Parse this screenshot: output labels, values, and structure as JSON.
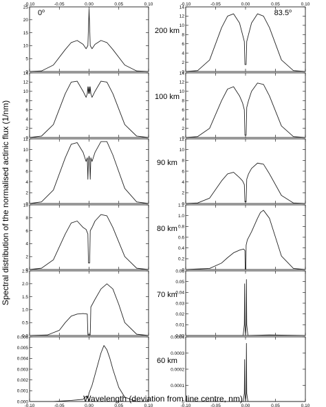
{
  "figure": {
    "ylabel": "Spectral distribution of the normalised actinic flux (1/nm)",
    "xlabel": "Wavelength (deviation from line centre, nm)",
    "x_ticks": [
      "-0.10",
      "-0.05",
      "0.00",
      "0.05",
      "0.10"
    ],
    "columns": [
      {
        "angle_base": "0",
        "angle_sup": "o"
      },
      {
        "angle_base": "83.5",
        "angle_sup": "o"
      }
    ],
    "rows": [
      {
        "altitude": "200 km"
      },
      {
        "altitude": "100 km"
      },
      {
        "altitude": "90 km"
      },
      {
        "altitude": "80 km"
      },
      {
        "altitude": "70 km"
      },
      {
        "altitude": "60 km"
      }
    ]
  },
  "chart_data": [
    {
      "type": "line",
      "column_angle": "0°",
      "altitude": "200 km",
      "xlim": [
        -0.1,
        0.1
      ],
      "ylim": [
        0,
        25
      ],
      "y_ticks": [
        "0",
        "5",
        "10",
        "15",
        "20",
        "25"
      ],
      "x": [
        -0.1,
        -0.08,
        -0.06,
        -0.04,
        -0.03,
        -0.02,
        -0.01,
        -0.005,
        -0.002,
        0.0,
        0.002,
        0.005,
        0.01,
        0.02,
        0.03,
        0.04,
        0.06,
        0.08,
        0.1
      ],
      "y": [
        0,
        0.2,
        2.5,
        8.5,
        11.2,
        12.0,
        10.5,
        8.8,
        10,
        24,
        10,
        8.8,
        10.5,
        12.0,
        11.2,
        8.5,
        2.5,
        0.2,
        0
      ]
    },
    {
      "type": "line",
      "column_angle": "83.5°",
      "altitude": "200 km",
      "xlim": [
        -0.1,
        0.1
      ],
      "ylim": [
        0,
        14
      ],
      "y_ticks": [
        "0",
        "2",
        "4",
        "6",
        "8",
        "10",
        "12",
        "14"
      ],
      "x": [
        -0.1,
        -0.08,
        -0.06,
        -0.04,
        -0.03,
        -0.02,
        -0.01,
        -0.005,
        -0.002,
        -0.001,
        0.001,
        0.002,
        0.005,
        0.01,
        0.02,
        0.03,
        0.04,
        0.06,
        0.08,
        0.1
      ],
      "y": [
        0,
        0.2,
        2.5,
        9.5,
        12.0,
        12.5,
        10.5,
        8.0,
        6.5,
        1.5,
        1.5,
        6.5,
        8.0,
        10.5,
        12.5,
        12.0,
        9.5,
        2.5,
        0.2,
        0
      ]
    },
    {
      "type": "line",
      "column_angle": "0°",
      "altitude": "100 km",
      "xlim": [
        -0.1,
        0.1
      ],
      "ylim": [
        0,
        14
      ],
      "y_ticks": [
        "0",
        "2",
        "4",
        "6",
        "8",
        "10",
        "12",
        "14"
      ],
      "x": [
        -0.1,
        -0.08,
        -0.06,
        -0.04,
        -0.03,
        -0.02,
        -0.01,
        -0.005,
        -0.003,
        -0.002,
        -0.001,
        0.0,
        0.001,
        0.002,
        0.003,
        0.005,
        0.01,
        0.02,
        0.03,
        0.04,
        0.06,
        0.08,
        0.1
      ],
      "y": [
        0,
        0.3,
        2.8,
        9.5,
        12.0,
        12.2,
        10.0,
        8.7,
        9.5,
        11.0,
        9.5,
        11.0,
        9.5,
        11.0,
        9.5,
        8.7,
        10.0,
        12.2,
        12.0,
        9.5,
        2.8,
        0.3,
        0
      ]
    },
    {
      "type": "line",
      "column_angle": "83.5°",
      "altitude": "100 km",
      "xlim": [
        -0.1,
        0.1
      ],
      "ylim": [
        0,
        14
      ],
      "y_ticks": [
        "0",
        "2",
        "4",
        "6",
        "8",
        "10",
        "12",
        "14"
      ],
      "x": [
        -0.1,
        -0.08,
        -0.06,
        -0.04,
        -0.03,
        -0.02,
        -0.01,
        -0.005,
        -0.002,
        -0.001,
        0.001,
        0.002,
        0.005,
        0.01,
        0.02,
        0.03,
        0.04,
        0.06,
        0.08,
        0.1
      ],
      "y": [
        0,
        0.2,
        2.0,
        8.0,
        10.5,
        11.0,
        9.0,
        7.5,
        6.0,
        0.5,
        0.5,
        6.5,
        8.0,
        10.0,
        11.8,
        11.5,
        9.0,
        2.5,
        0.2,
        0
      ]
    },
    {
      "type": "line",
      "column_angle": "0°",
      "altitude": "90 km",
      "xlim": [
        -0.1,
        0.1
      ],
      "ylim": [
        0,
        12
      ],
      "y_ticks": [
        "0",
        "2",
        "4",
        "6",
        "8",
        "10",
        "12"
      ],
      "x": [
        -0.1,
        -0.08,
        -0.06,
        -0.04,
        -0.03,
        -0.02,
        -0.01,
        -0.005,
        -0.003,
        -0.002,
        -0.001,
        0.0,
        0.001,
        0.002,
        0.003,
        0.005,
        0.01,
        0.02,
        0.03,
        0.04,
        0.06,
        0.08,
        0.1
      ],
      "y": [
        0,
        0.3,
        2.5,
        8.5,
        11.0,
        11.3,
        9.5,
        7.8,
        8.5,
        4.5,
        8.0,
        8.8,
        8.0,
        4.5,
        8.5,
        7.8,
        9.5,
        11.5,
        11.5,
        9.0,
        2.8,
        0.3,
        0
      ]
    },
    {
      "type": "line",
      "column_angle": "83.5°",
      "altitude": "90 km",
      "xlim": [
        -0.1,
        0.1
      ],
      "ylim": [
        0,
        12
      ],
      "y_ticks": [
        "0",
        "2",
        "4",
        "6",
        "8",
        "10",
        "12"
      ],
      "x": [
        -0.1,
        -0.08,
        -0.06,
        -0.04,
        -0.03,
        -0.02,
        -0.01,
        -0.005,
        -0.002,
        -0.001,
        0.001,
        0.002,
        0.005,
        0.01,
        0.02,
        0.03,
        0.04,
        0.06,
        0.08,
        0.1
      ],
      "y": [
        0,
        0.1,
        1.0,
        4.2,
        5.5,
        5.8,
        4.8,
        4.2,
        3.5,
        0.3,
        0.3,
        4.5,
        5.5,
        6.5,
        7.5,
        7.3,
        5.5,
        1.5,
        0.1,
        0
      ]
    },
    {
      "type": "line",
      "column_angle": "0°",
      "altitude": "80 km",
      "xlim": [
        -0.1,
        0.1
      ],
      "ylim": [
        0,
        10
      ],
      "y_ticks": [
        "0",
        "2",
        "4",
        "6",
        "8",
        "10"
      ],
      "x": [
        -0.1,
        -0.08,
        -0.06,
        -0.04,
        -0.03,
        -0.02,
        -0.01,
        -0.005,
        -0.002,
        -0.001,
        0.001,
        0.002,
        0.005,
        0.01,
        0.02,
        0.03,
        0.04,
        0.06,
        0.08,
        0.1
      ],
      "y": [
        0,
        0.2,
        1.5,
        5.5,
        7.2,
        7.5,
        6.5,
        6.2,
        5.5,
        1.0,
        1.0,
        6.0,
        6.5,
        7.5,
        8.5,
        8.3,
        6.5,
        2.0,
        0.2,
        0
      ]
    },
    {
      "type": "line",
      "column_angle": "83.5°",
      "altitude": "80 km",
      "xlim": [
        -0.1,
        0.1
      ],
      "ylim": [
        0,
        1.2
      ],
      "y_ticks": [
        "0",
        "0.2",
        "0.4",
        "0.6",
        "0.8",
        "1.0",
        "1.2"
      ],
      "x": [
        -0.1,
        -0.06,
        -0.04,
        -0.03,
        -0.02,
        -0.01,
        -0.003,
        -0.001,
        -0.0005,
        0.0005,
        0.001,
        0.003,
        0.01,
        0.02,
        0.025,
        0.03,
        0.04,
        0.05,
        0.06,
        0.08,
        0.1
      ],
      "y": [
        0,
        0.02,
        0.12,
        0.22,
        0.31,
        0.36,
        0.38,
        0.35,
        0.0,
        0.0,
        0.45,
        0.55,
        0.7,
        0.95,
        1.06,
        1.1,
        0.95,
        0.6,
        0.25,
        0.02,
        0
      ]
    },
    {
      "type": "line",
      "column_angle": "0°",
      "altitude": "70 km",
      "xlim": [
        -0.1,
        0.1
      ],
      "ylim": [
        0,
        2.5
      ],
      "y_ticks": [
        "0.0",
        "0.5",
        "1.0",
        "1.5",
        "2.0",
        "2.5"
      ],
      "x": [
        -0.1,
        -0.07,
        -0.05,
        -0.04,
        -0.03,
        -0.02,
        -0.01,
        -0.003,
        -0.002,
        0.002,
        0.003,
        0.01,
        0.02,
        0.03,
        0.04,
        0.05,
        0.06,
        0.08,
        0.1
      ],
      "y": [
        0,
        0.02,
        0.2,
        0.5,
        0.75,
        0.83,
        0.85,
        0.83,
        0.03,
        0.03,
        1.1,
        1.4,
        1.8,
        2.0,
        1.8,
        1.2,
        0.5,
        0.05,
        0
      ]
    },
    {
      "type": "line",
      "column_angle": "83.5°",
      "altitude": "70 km",
      "xlim": [
        -0.1,
        0.1
      ],
      "ylim": [
        0,
        0.06
      ],
      "y_ticks": [
        "0.00",
        "0.01",
        "0.02",
        "0.03",
        "0.04",
        "0.05",
        "0.06"
      ],
      "x": [
        -0.1,
        -0.004,
        -0.002,
        -0.0015,
        -0.001,
        0.0,
        0.001,
        0.0015,
        0.002,
        0.004,
        0.04,
        0.1
      ],
      "y": [
        0,
        0.0,
        0.01,
        0.048,
        0.01,
        0.0,
        0.01,
        0.052,
        0.01,
        0.0,
        0.0005,
        0
      ]
    },
    {
      "type": "line",
      "column_angle": "0°",
      "altitude": "60 km",
      "xlim": [
        -0.1,
        0.1
      ],
      "ylim": [
        0,
        0.006
      ],
      "y_ticks": [
        "0.000",
        "0.001",
        "0.002",
        "0.003",
        "0.004",
        "0.005",
        "0.006"
      ],
      "x": [
        -0.1,
        -0.06,
        -0.03,
        -0.01,
        -0.005,
        -0.002,
        0.0,
        0.005,
        0.01,
        0.015,
        0.02,
        0.025,
        0.03,
        0.035,
        0.04,
        0.05,
        0.06,
        0.08,
        0.1
      ],
      "y": [
        0,
        0.0,
        0.0001,
        0.0002,
        0.0005,
        0.0003,
        0.0008,
        0.0015,
        0.0025,
        0.0035,
        0.0045,
        0.0052,
        0.0048,
        0.004,
        0.003,
        0.0013,
        0.0004,
        0.0,
        0
      ]
    },
    {
      "type": "line",
      "column_angle": "83.5°",
      "altitude": "60 km",
      "xlim": [
        -0.1,
        0.1
      ],
      "ylim": [
        0,
        0.0004
      ],
      "y_ticks": [
        "0",
        "0.0001",
        "0.0002",
        "0.0003",
        "0.0004"
      ],
      "x": [
        -0.1,
        -0.004,
        -0.002,
        -0.0015,
        -0.001,
        0.0,
        0.001,
        0.0015,
        0.002,
        0.004,
        0.1
      ],
      "y": [
        0,
        0.0,
        5e-05,
        0.00026,
        5e-05,
        0.0,
        5e-05,
        0.00036,
        5e-05,
        0.0,
        0
      ]
    }
  ]
}
